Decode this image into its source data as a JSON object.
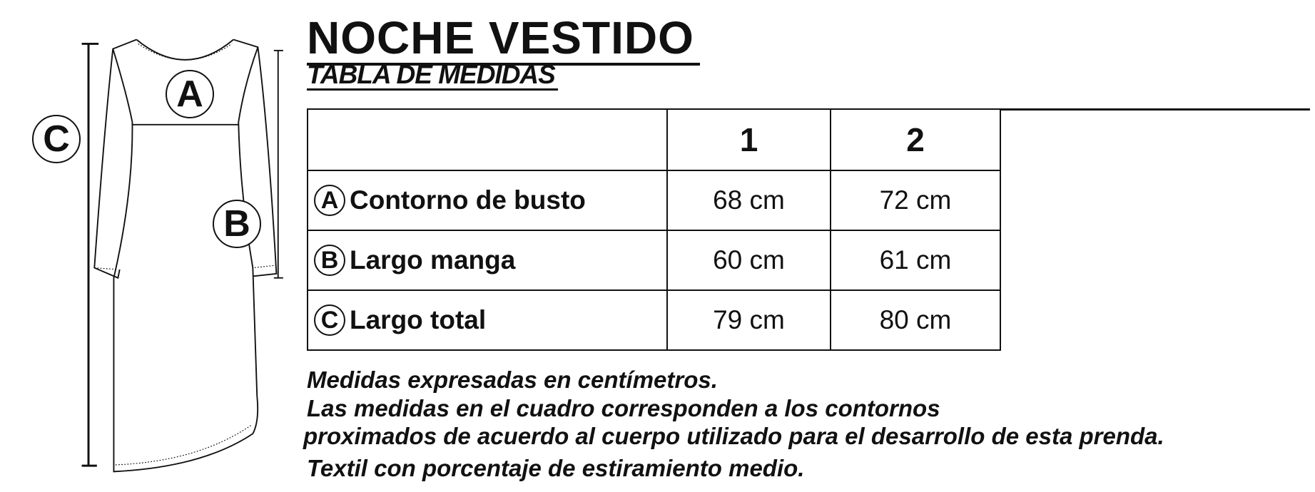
{
  "header": {
    "title": "NOCHE VESTIDO",
    "subtitle": "TABLA DE MEDIDAS"
  },
  "table": {
    "columns": [
      "",
      "1",
      "2"
    ],
    "rows": [
      {
        "marker": "A",
        "label": "Contorno de busto",
        "values": [
          "68 cm",
          "72 cm"
        ]
      },
      {
        "marker": "B",
        "label": "Largo manga",
        "values": [
          "60 cm",
          "61 cm"
        ]
      },
      {
        "marker": "C",
        "label": "Largo total",
        "values": [
          "79 cm",
          "80 cm"
        ]
      }
    ]
  },
  "notes": [
    "Medidas expresadas en centímetros.",
    "Las medidas en el cuadro corresponden a los contornos",
    "proximados de acuerdo al cuerpo utilizado para el desarrollo de esta prenda.",
    "Textil con porcentaje de estiramiento medio."
  ],
  "diagram": {
    "markers": [
      "A",
      "B",
      "C"
    ]
  }
}
